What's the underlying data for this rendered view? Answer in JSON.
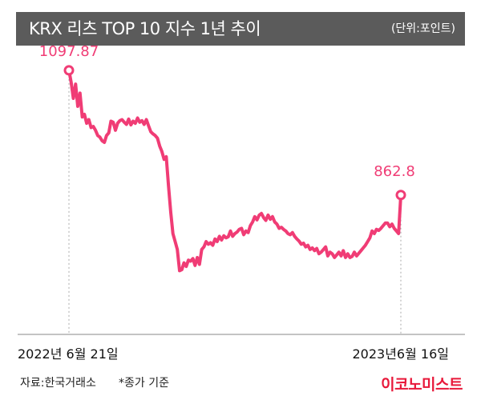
{
  "header": {
    "title": "KRX 리츠 TOP 10 지수 1년 추이",
    "unit": "(단위:포인트)"
  },
  "chart_data": {
    "type": "line",
    "title": "KRX 리츠 TOP 10 지수 1년 추이",
    "xlabel": "",
    "ylabel": "",
    "ylim": [
      600,
      1140
    ],
    "x_start_label": "2022년 6월 21일",
    "x_end_label": "2023년6월 16일",
    "start_value_label": "1097.87",
    "end_value_label": "862.8",
    "color": "#f03c75",
    "series": [
      {
        "values": [
          1097.87,
          1075,
          1045,
          1072,
          1030,
          1055,
          1010,
          1015,
          998,
          1005,
          990,
          992,
          985,
          975,
          972,
          965,
          962,
          975,
          980,
          1002,
          1000,
          985,
          998,
          1003,
          1005,
          1000,
          996,
          1006,
          995,
          1002,
          998,
          1008,
          1000,
          1003,
          996,
          1005,
          993,
          982,
          978,
          975,
          970,
          955,
          945,
          930,
          935,
          880,
          830,
          790,
          775,
          760,
          720,
          722,
          735,
          728,
          740,
          738,
          743,
          730,
          745,
          732,
          760,
          765,
          775,
          770,
          773,
          768,
          780,
          775,
          785,
          778,
          786,
          782,
          784,
          795,
          785,
          790,
          793,
          798,
          800,
          788,
          795,
          792,
          805,
          812,
          822,
          816,
          825,
          828,
          820,
          815,
          825,
          817,
          822,
          812,
          808,
          800,
          802,
          798,
          795,
          790,
          788,
          792,
          785,
          780,
          776,
          770,
          772,
          765,
          768,
          760,
          763,
          758,
          762,
          752,
          755,
          760,
          765,
          748,
          755,
          752,
          745,
          750,
          755,
          748,
          758,
          745,
          752,
          745,
          747,
          755,
          748,
          753,
          758,
          763,
          768,
          775,
          782,
          795,
          790,
          798,
          796,
          800,
          805,
          810,
          810,
          803,
          808,
          800,
          795,
          790,
          862.8
        ]
      }
    ]
  },
  "footer": {
    "source": "자료:한국거래소",
    "note": "*종가 기준",
    "brand": "이코노미스트"
  }
}
